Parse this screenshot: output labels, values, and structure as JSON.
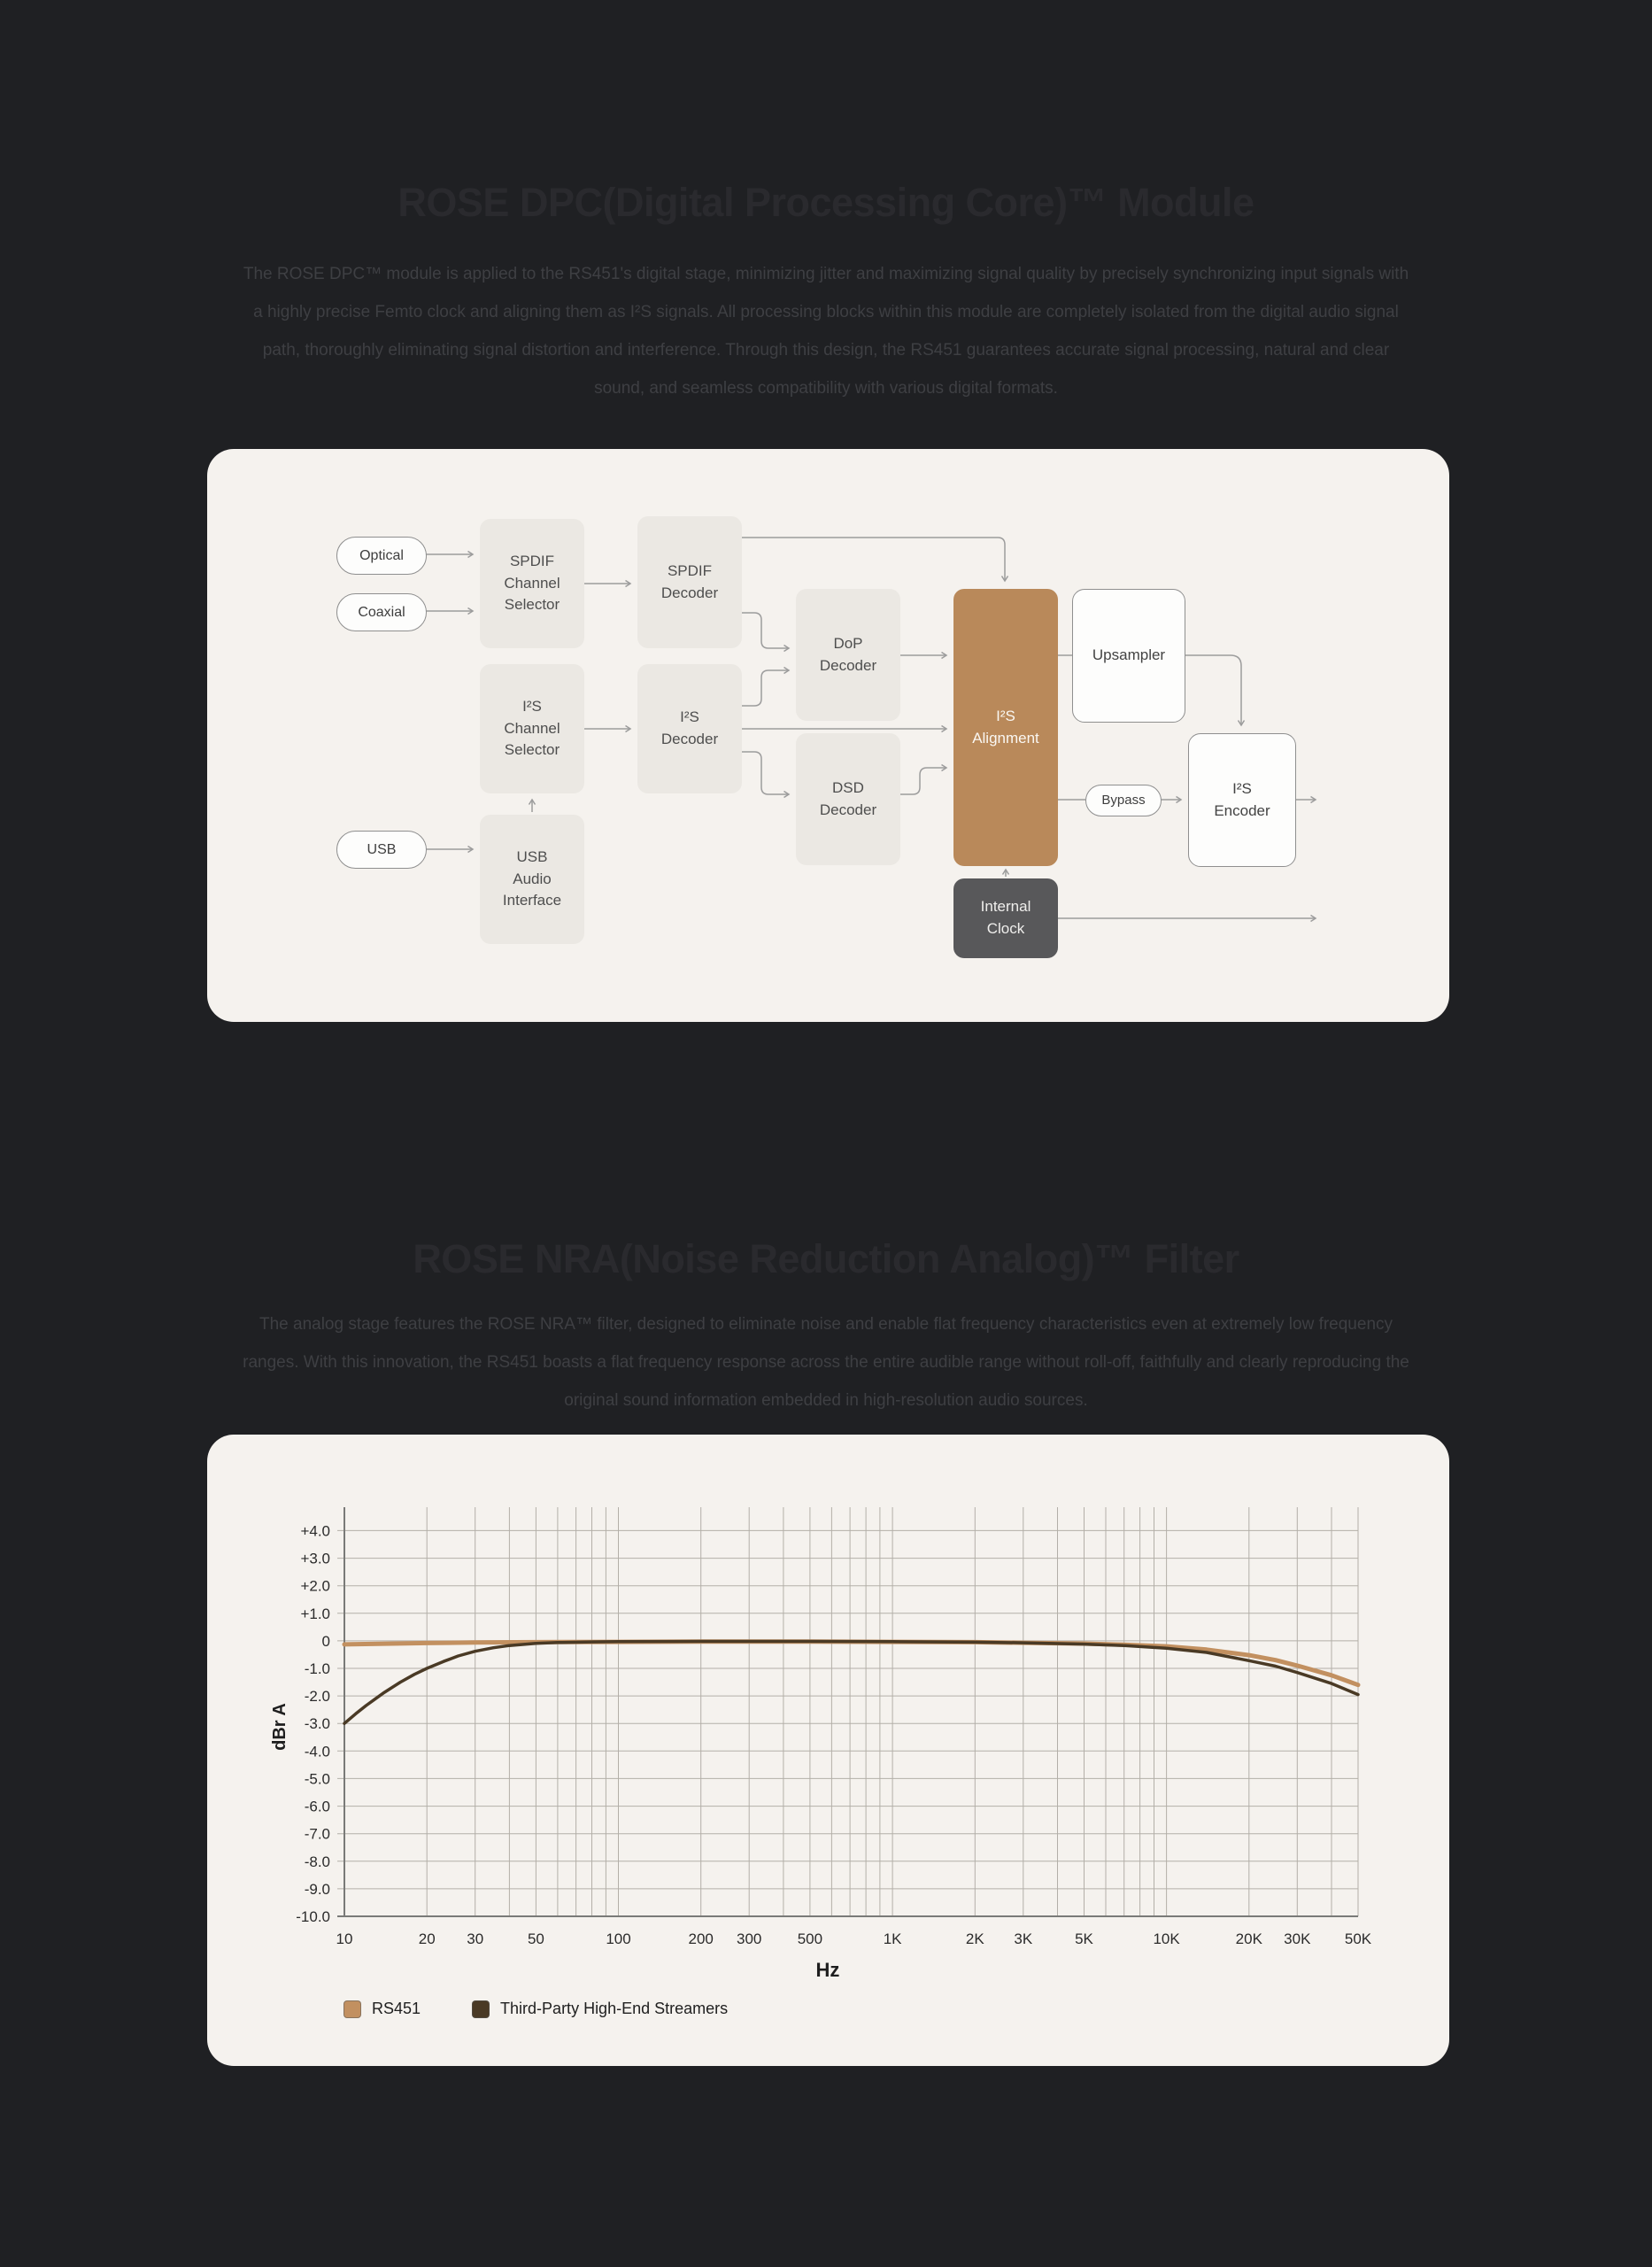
{
  "dpc": {
    "heading": "ROSE DPC(Digital Processing Core)™ Module",
    "paragraph": "The ROSE DPC™ module is applied to the RS451's digital stage, minimizing jitter and maximizing signal quality by precisely synchronizing input signals with a highly precise Femto clock and aligning them as I²S signals. All processing blocks within this module are completely isolated from the digital audio signal path, thoroughly eliminating signal distortion and interference. Through this design, the RS451 guarantees accurate signal processing, natural and clear sound, and seamless compatibility with various digital formats."
  },
  "nra": {
    "heading": "ROSE NRA(Noise Reduction Analog)™ Filter",
    "paragraph": "The analog stage features the ROSE NRA™ filter, designed to eliminate noise and enable flat frequency characteristics even at extremely low frequency ranges. With this innovation, the RS451 boasts a flat frequency response across the entire audible range without roll-off, faithfully and clearly reproducing the original sound information embedded in high-resolution audio sources."
  },
  "diagram": {
    "inputs": {
      "optical": "Optical",
      "coaxial": "Coaxial",
      "usb": "USB"
    },
    "blocks": {
      "spdif_selector": "SPDIF\nChannel\nSelector",
      "spdif_decoder": "SPDIF\nDecoder",
      "i2s_selector": "I²S\nChannel\nSelector",
      "i2s_decoder": "I²S\nDecoder",
      "dop_decoder": "DoP\nDecoder",
      "dsd_decoder": "DSD\nDecoder",
      "usb_audio": "USB\nAudio\nInterface",
      "i2s_alignment": "I²S\nAlignment",
      "upsampler": "Upsampler",
      "i2s_encoder": "I²S\nEncoder",
      "internal_clock": "Internal\nClock",
      "bypass": "Bypass"
    },
    "accent_color": "#b9895a",
    "clock_color": "#58585a"
  },
  "chart_data": {
    "type": "line",
    "x_scale": "log",
    "title": "",
    "xlabel": "Hz",
    "ylabel": "dBr A",
    "xlim": [
      10,
      50000
    ],
    "ylim": [
      -10,
      4.85
    ],
    "grid": true,
    "legend_position": "bottom-left",
    "yticks": [
      4,
      3,
      2,
      1,
      0,
      -1,
      -2,
      -3,
      -4,
      -5,
      -6,
      -7,
      -8,
      -9,
      -10
    ],
    "ytick_labels": [
      "+4.0",
      "+3.0",
      "+2.0",
      "+1.0",
      "0",
      "-1.0",
      "-2.0",
      "-3.0",
      "-4.0",
      "-5.0",
      "-6.0",
      "-7.0",
      "-8.0",
      "-9.0",
      "-10.0"
    ],
    "xticks": [
      10,
      20,
      30,
      50,
      100,
      200,
      300,
      500,
      1000,
      2000,
      3000,
      5000,
      10000,
      20000,
      30000,
      50000
    ],
    "xtick_labels": [
      "10",
      "20",
      "30",
      "50",
      "100",
      "200",
      "300",
      "500",
      "1K",
      "2K",
      "3K",
      "5K",
      "10K",
      "20K",
      "30K",
      "50K"
    ],
    "x_gridlines": [
      10,
      20,
      30,
      40,
      50,
      60,
      70,
      80,
      90,
      100,
      200,
      300,
      400,
      500,
      600,
      700,
      800,
      900,
      1000,
      2000,
      3000,
      4000,
      5000,
      6000,
      7000,
      8000,
      9000,
      10000,
      20000,
      30000,
      40000,
      50000
    ],
    "series": [
      {
        "name": "RS451",
        "color": "#c29060",
        "width": 5,
        "points": [
          [
            10,
            -0.13
          ],
          [
            15,
            -0.1
          ],
          [
            20,
            -0.08
          ],
          [
            30,
            -0.06
          ],
          [
            50,
            -0.05
          ],
          [
            100,
            -0.04
          ],
          [
            200,
            -0.03
          ],
          [
            500,
            -0.03
          ],
          [
            1000,
            -0.04
          ],
          [
            2000,
            -0.05
          ],
          [
            3000,
            -0.07
          ],
          [
            5000,
            -0.1
          ],
          [
            7000,
            -0.14
          ],
          [
            10000,
            -0.2
          ],
          [
            14000,
            -0.32
          ],
          [
            20000,
            -0.52
          ],
          [
            25000,
            -0.7
          ],
          [
            30000,
            -0.9
          ],
          [
            40000,
            -1.25
          ],
          [
            50000,
            -1.6
          ]
        ]
      },
      {
        "name": "Third-Party High-End Streamers",
        "color": "#4a3a25",
        "width": 3.5,
        "points": [
          [
            10,
            -3.0
          ],
          [
            11,
            -2.65
          ],
          [
            12,
            -2.35
          ],
          [
            13,
            -2.1
          ],
          [
            14,
            -1.87
          ],
          [
            16,
            -1.5
          ],
          [
            18,
            -1.22
          ],
          [
            20,
            -1.0
          ],
          [
            23,
            -0.75
          ],
          [
            26,
            -0.55
          ],
          [
            30,
            -0.38
          ],
          [
            35,
            -0.25
          ],
          [
            40,
            -0.17
          ],
          [
            50,
            -0.09
          ],
          [
            60,
            -0.06
          ],
          [
            80,
            -0.04
          ],
          [
            100,
            -0.03
          ],
          [
            200,
            -0.02
          ],
          [
            500,
            -0.02
          ],
          [
            1000,
            -0.03
          ],
          [
            2000,
            -0.05
          ],
          [
            3000,
            -0.07
          ],
          [
            5000,
            -0.12
          ],
          [
            7000,
            -0.17
          ],
          [
            10000,
            -0.27
          ],
          [
            14000,
            -0.42
          ],
          [
            20000,
            -0.72
          ],
          [
            25000,
            -0.92
          ],
          [
            30000,
            -1.15
          ],
          [
            40000,
            -1.55
          ],
          [
            50000,
            -1.95
          ]
        ]
      }
    ]
  }
}
